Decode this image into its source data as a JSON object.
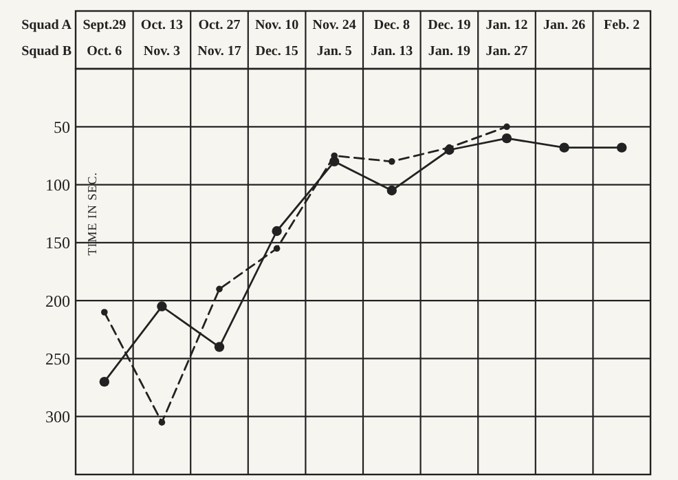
{
  "chart_data": {
    "type": "line",
    "ylabel": "TIME IN SEC.",
    "annotations": [
      "Squad A",
      "Squad B"
    ],
    "categories": [
      "Sept.29\nOct. 6",
      "Oct. 13\nNov. 3",
      "Oct. 27\nNov. 17",
      "Nov. 10\nDec. 15",
      "Nov. 24\nJan. 5",
      "Dec. 8\nJan. 13",
      "Dec. 19\nJan. 19",
      "Jan. 12\nJan. 27",
      "Jan. 26",
      "Feb. 2"
    ],
    "series": [
      {
        "color": "#222222",
        "line_style": "solid",
        "values": [
          270,
          205,
          240,
          140,
          80,
          105,
          70,
          60,
          68,
          68
        ]
      },
      {
        "color": "#222222",
        "line_style": "dashed",
        "values": [
          210,
          305,
          190,
          155,
          75,
          80,
          68,
          50,
          null,
          null
        ]
      }
    ],
    "ylim": [
      350,
      0
    ],
    "yticks": [
      50,
      100,
      150,
      200,
      250,
      300
    ],
    "grid": true,
    "marker": "circle"
  }
}
